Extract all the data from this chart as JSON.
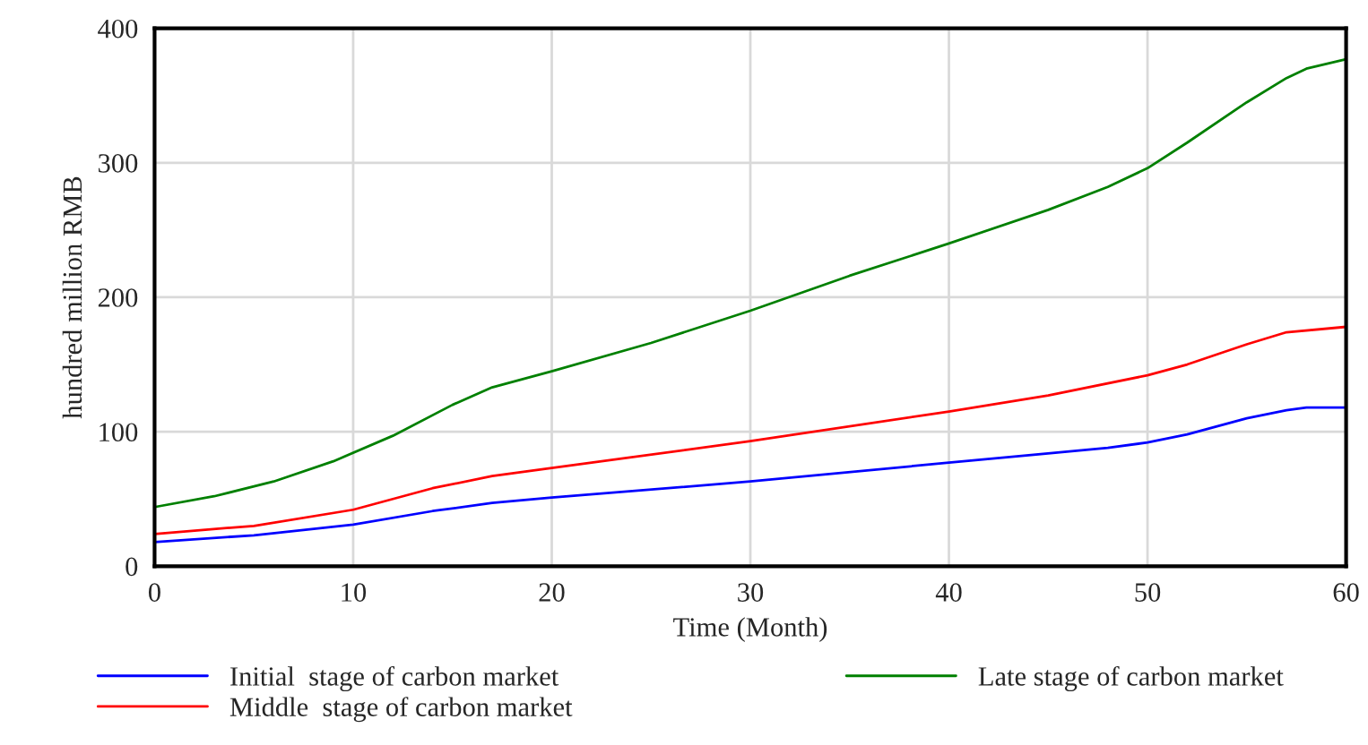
{
  "chart_data": {
    "type": "line",
    "xlabel": "Time (Month)",
    "ylabel": "hundred million RMB",
    "xlim": [
      0,
      60
    ],
    "ylim": [
      0,
      400
    ],
    "xticks": [
      0,
      10,
      20,
      30,
      40,
      50,
      60
    ],
    "yticks": [
      0,
      100,
      200,
      300,
      400
    ],
    "grid": true,
    "legend": "bottom",
    "marker": "none",
    "line_style": "solid",
    "series": [
      {
        "name": "Initial  stage of carbon market",
        "color": "#0000ff",
        "x": [
          0,
          5,
          10,
          14,
          17,
          20,
          30,
          40,
          48,
          50,
          52,
          55,
          57,
          58,
          60
        ],
        "values": [
          18,
          23,
          31,
          41,
          47,
          51,
          63,
          77,
          88,
          92,
          98,
          110,
          116,
          118,
          118
        ]
      },
      {
        "name": "Middle  stage of carbon market",
        "color": "#ff0000",
        "x": [
          0,
          5,
          10,
          14,
          17,
          20,
          30,
          40,
          45,
          50,
          52,
          55,
          57,
          60
        ],
        "values": [
          24,
          30,
          42,
          58,
          67,
          73,
          93,
          115,
          127,
          142,
          150,
          165,
          174,
          178
        ]
      },
      {
        "name": "Late stage of carbon market",
        "color": "#008000",
        "x": [
          0,
          3,
          6,
          9,
          12,
          15,
          17,
          20,
          25,
          30,
          35,
          40,
          45,
          48,
          50,
          52,
          55,
          57,
          58,
          60
        ],
        "values": [
          44,
          52,
          63,
          78,
          97,
          120,
          133,
          145,
          166,
          190,
          216,
          240,
          265,
          282,
          296,
          315,
          345,
          363,
          370,
          377
        ]
      }
    ]
  }
}
